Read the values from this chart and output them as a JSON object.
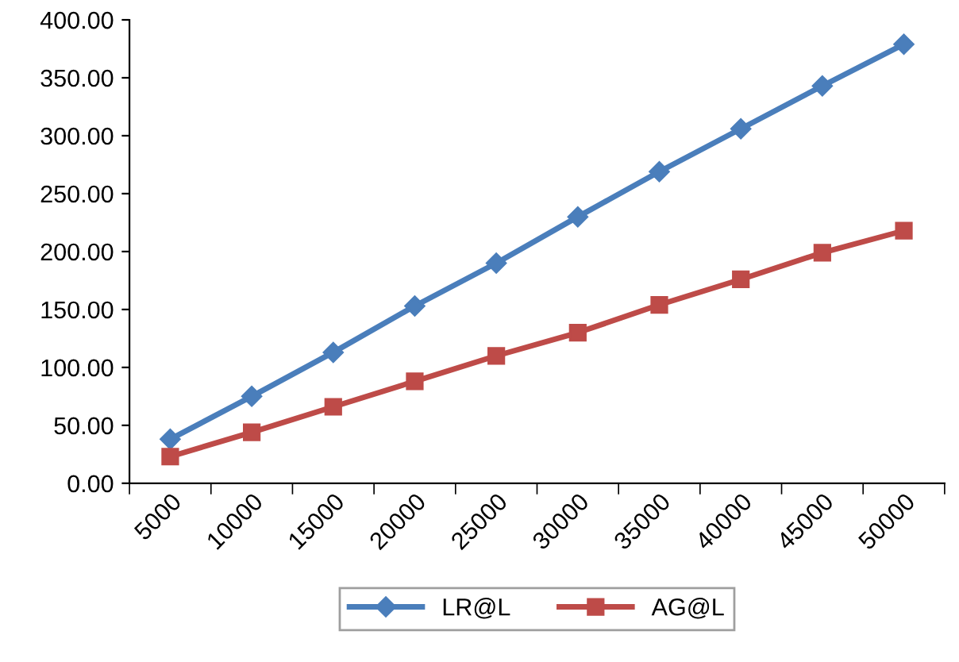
{
  "chart_data": {
    "type": "line",
    "categories": [
      "5000",
      "10000",
      "15000",
      "20000",
      "25000",
      "30000",
      "35000",
      "40000",
      "45000",
      "50000"
    ],
    "series": [
      {
        "name": "LR@L",
        "color": "#4a7ebb",
        "marker": "diamond",
        "values": [
          38,
          75,
          113,
          153,
          190,
          230,
          269,
          306,
          343,
          379
        ]
      },
      {
        "name": "AG@L",
        "color": "#be4b48",
        "marker": "square",
        "values": [
          23,
          44,
          66,
          88,
          110,
          130,
          154,
          176,
          199,
          218
        ]
      }
    ],
    "ylim": [
      0,
      400
    ],
    "yticks": [
      {
        "value": 0,
        "label": "0.00"
      },
      {
        "value": 50,
        "label": "50.00"
      },
      {
        "value": 100,
        "label": "100.00"
      },
      {
        "value": 150,
        "label": "150.00"
      },
      {
        "value": 200,
        "label": "200.00"
      },
      {
        "value": 250,
        "label": "250.00"
      },
      {
        "value": 300,
        "label": "300.00"
      },
      {
        "value": 350,
        "label": "350.00"
      },
      {
        "value": 400,
        "label": "400.00"
      }
    ],
    "grid": false,
    "legend": "bottom",
    "line_style": "solid"
  }
}
